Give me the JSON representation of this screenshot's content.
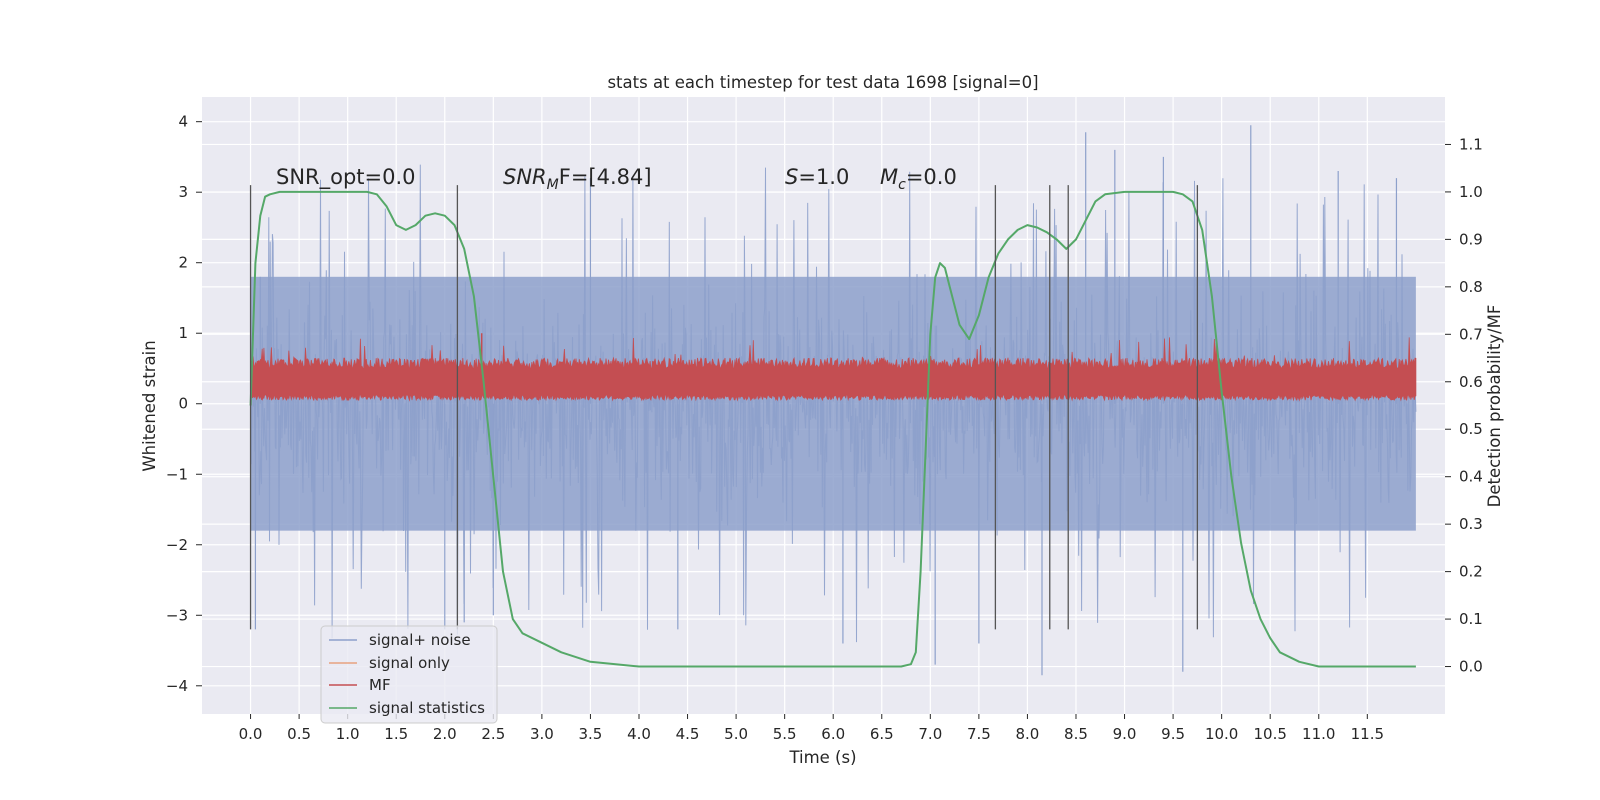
{
  "chart_data": {
    "type": "line",
    "title": "stats at each timestep for test data 1698 [signal=0]",
    "xlabel": "Time (s)",
    "ylabel_left": "Whitened strain",
    "ylabel_right": "Detection probability/MF",
    "xlim": [
      -0.5,
      12.3
    ],
    "ylim_left": [
      -4.4,
      4.35
    ],
    "ylim_right": [
      -0.1,
      1.2
    ],
    "x_ticks": [
      "0.0",
      "0.5",
      "1.0",
      "1.5",
      "2.0",
      "2.5",
      "3.0",
      "3.5",
      "4.0",
      "4.5",
      "5.0",
      "5.5",
      "6.0",
      "6.5",
      "7.0",
      "7.5",
      "8.0",
      "8.5",
      "9.0",
      "9.5",
      "10.0",
      "10.5",
      "11.0",
      "11.5"
    ],
    "y_ticks_left": [
      "4",
      "3",
      "2",
      "1",
      "0",
      "−1",
      "−2",
      "−3",
      "−4"
    ],
    "y_ticks_right": [
      "1.1",
      "1.0",
      "0.9",
      "0.8",
      "0.7",
      "0.6",
      "0.5",
      "0.4",
      "0.3",
      "0.2",
      "0.1",
      "0.0"
    ],
    "grid": true,
    "legend_position": "lower-left",
    "annotations": {
      "snr_opt": "SNR_opt=0.0",
      "snr_mf_base": "SNR",
      "snr_mf_sub": "M",
      "snr_mf_rest": "F=[4.84]",
      "s_base": "S",
      "s_rest": "=1.0",
      "mc_base": "M",
      "mc_sub": "c",
      "mc_rest": "=0.0"
    },
    "series": [
      {
        "name": "signal+ noise",
        "color": "#8da0cb",
        "axis": "left",
        "description_type": "noise band",
        "x_range": [
          0.0,
          12.0
        ],
        "core_amplitude": 1.8,
        "peak_min": -3.85,
        "peak_max": 3.95
      },
      {
        "name": "signal only",
        "color": "#e8a27f",
        "axis": "left",
        "values": []
      },
      {
        "name": "MF",
        "color": "#c44e52",
        "axis": "left",
        "description_type": "noise band",
        "x_range": [
          0.0,
          12.0
        ],
        "level_low": 0.05,
        "level_high": 0.55,
        "peak_max": 1.0
      },
      {
        "name": "signal statistics",
        "color": "#55a868",
        "axis": "right",
        "x": [
          0.0,
          0.05,
          0.1,
          0.15,
          0.2,
          0.3,
          0.5,
          0.8,
          1.0,
          1.2,
          1.3,
          1.4,
          1.5,
          1.6,
          1.7,
          1.8,
          1.9,
          2.0,
          2.1,
          2.2,
          2.3,
          2.4,
          2.5,
          2.6,
          2.7,
          2.8,
          3.0,
          3.2,
          3.5,
          4.0,
          4.5,
          5.0,
          5.5,
          6.0,
          6.5,
          6.7,
          6.8,
          6.85,
          6.9,
          6.95,
          7.0,
          7.05,
          7.1,
          7.15,
          7.2,
          7.3,
          7.4,
          7.5,
          7.6,
          7.7,
          7.8,
          7.9,
          8.0,
          8.1,
          8.2,
          8.3,
          8.4,
          8.5,
          8.6,
          8.7,
          8.8,
          9.0,
          9.5,
          9.6,
          9.7,
          9.8,
          9.9,
          10.0,
          10.1,
          10.2,
          10.3,
          10.4,
          10.5,
          10.6,
          10.8,
          11.0,
          11.5,
          12.0
        ],
        "y": [
          0.55,
          0.85,
          0.95,
          0.99,
          0.995,
          1.0,
          1.0,
          1.0,
          1.0,
          1.0,
          0.995,
          0.97,
          0.93,
          0.92,
          0.93,
          0.95,
          0.955,
          0.95,
          0.93,
          0.88,
          0.78,
          0.6,
          0.4,
          0.2,
          0.1,
          0.07,
          0.05,
          0.03,
          0.01,
          0.0,
          0.0,
          0.0,
          0.0,
          0.0,
          0.0,
          0.0,
          0.005,
          0.03,
          0.2,
          0.45,
          0.7,
          0.82,
          0.85,
          0.84,
          0.8,
          0.72,
          0.69,
          0.74,
          0.82,
          0.87,
          0.9,
          0.92,
          0.93,
          0.925,
          0.915,
          0.9,
          0.88,
          0.9,
          0.94,
          0.98,
          0.995,
          1.0,
          1.0,
          0.995,
          0.98,
          0.92,
          0.78,
          0.58,
          0.4,
          0.26,
          0.16,
          0.1,
          0.06,
          0.03,
          0.01,
          0.0,
          0.0,
          0.0
        ]
      }
    ],
    "vertical_lines": [
      0.0,
      2.13,
      7.67,
      8.23,
      8.42,
      9.75
    ]
  }
}
